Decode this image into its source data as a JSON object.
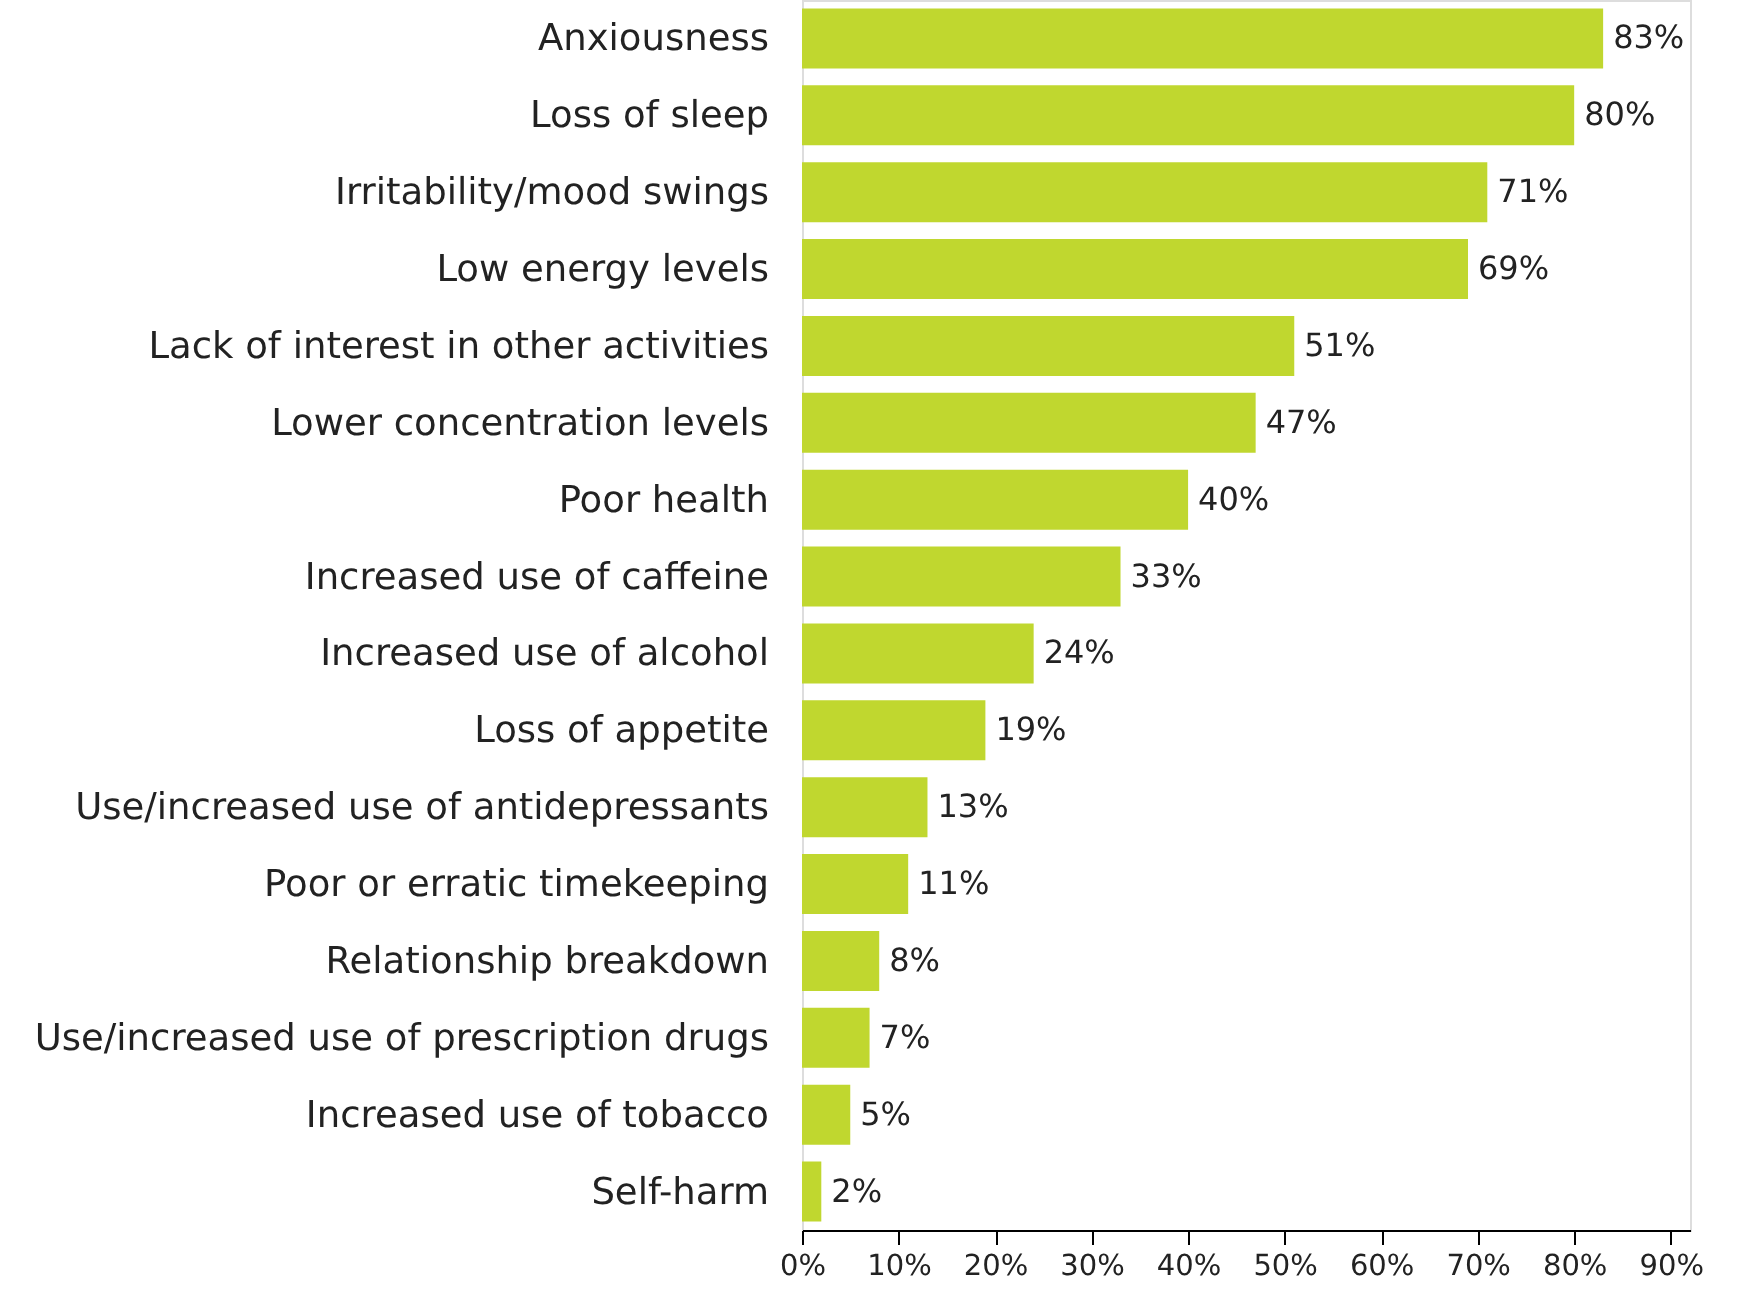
{
  "chart_data": {
    "type": "bar",
    "orientation": "horizontal",
    "categories": [
      "Anxiousness",
      "Loss of sleep",
      "Irritability/mood swings",
      "Low energy levels",
      "Lack of interest in other activities",
      "Lower concentration levels",
      "Poor health",
      "Increased use of caffeine",
      "Increased use of alcohol",
      "Loss of appetite",
      "Use/increased use of antidepressants",
      "Poor or erratic timekeeping",
      "Relationship breakdown",
      "Use/increased use of prescription drugs",
      "Increased use of tobacco",
      "Self-harm"
    ],
    "values": [
      83,
      80,
      71,
      69,
      51,
      47,
      40,
      33,
      24,
      19,
      13,
      11,
      8,
      7,
      5,
      2
    ],
    "value_labels": [
      "83%",
      "80%",
      "71%",
      "69%",
      "51%",
      "47%",
      "40%",
      "33%",
      "24%",
      "19%",
      "13%",
      "11%",
      "8%",
      "7%",
      "5%",
      "2%"
    ],
    "color": "#c0d72f",
    "xlim": [
      0,
      92
    ],
    "xticks": [
      {
        "value": 0,
        "label": "0%"
      },
      {
        "value": 10,
        "label": "10%"
      },
      {
        "value": 20,
        "label": "20%"
      },
      {
        "value": 30,
        "label": "30%"
      },
      {
        "value": 40,
        "label": "40%"
      },
      {
        "value": 50,
        "label": "50%"
      },
      {
        "value": 60,
        "label": "60%"
      },
      {
        "value": 70,
        "label": "70%"
      },
      {
        "value": 80,
        "label": "80%"
      },
      {
        "value": 90,
        "label": "90%"
      }
    ]
  }
}
